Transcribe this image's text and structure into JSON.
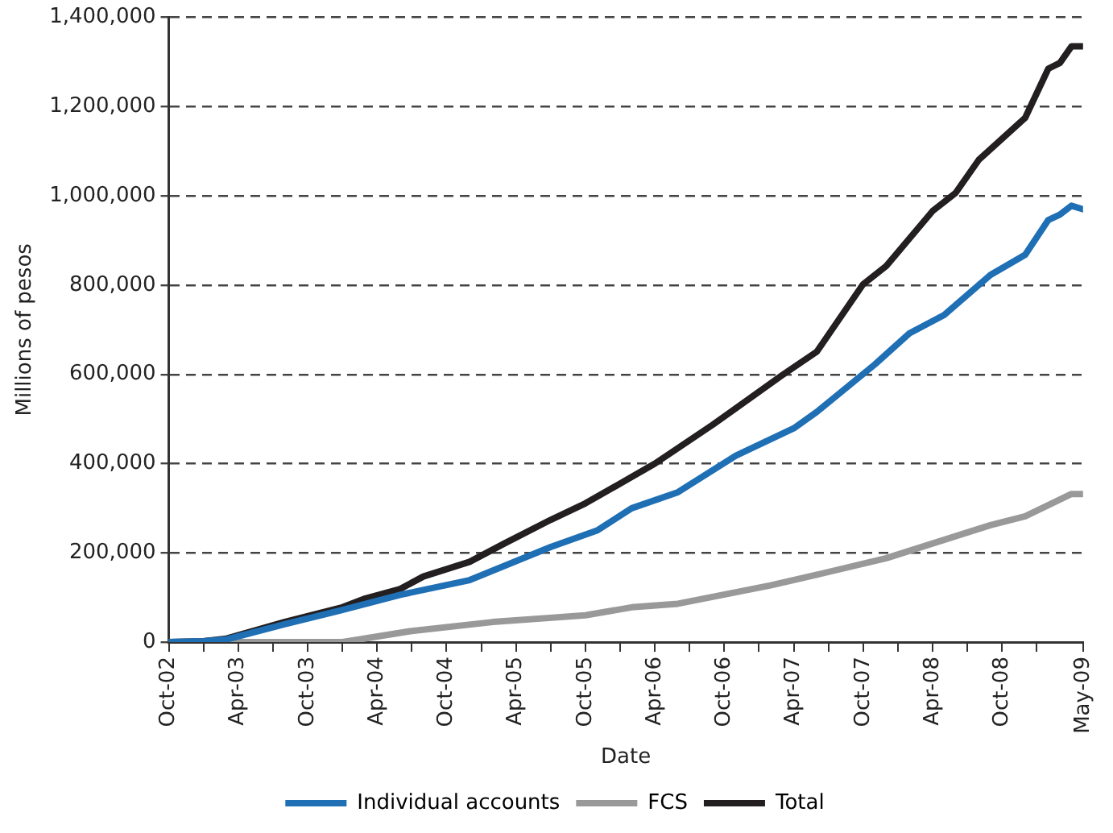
{
  "chart_data": {
    "type": "line",
    "xlabel": "Date",
    "ylabel": "Millions of pesos",
    "xlim": [
      "2002-10",
      "2009-05"
    ],
    "xticks": [
      {
        "value": "2002-10",
        "label": "Oct-02"
      },
      {
        "value": "2003-01",
        "label": null
      },
      {
        "value": "2003-04",
        "label": "Apr-03"
      },
      {
        "value": "2003-07",
        "label": null
      },
      {
        "value": "2003-10",
        "label": "Oct-03"
      },
      {
        "value": "2004-01",
        "label": null
      },
      {
        "value": "2004-04",
        "label": "Apr-04"
      },
      {
        "value": "2004-07",
        "label": null
      },
      {
        "value": "2004-10",
        "label": "Oct-04"
      },
      {
        "value": "2005-01",
        "label": null
      },
      {
        "value": "2005-04",
        "label": "Apr-05"
      },
      {
        "value": "2005-07",
        "label": null
      },
      {
        "value": "2005-10",
        "label": "Oct-05"
      },
      {
        "value": "2006-01",
        "label": null
      },
      {
        "value": "2006-04",
        "label": "Apr-06"
      },
      {
        "value": "2006-07",
        "label": null
      },
      {
        "value": "2006-10",
        "label": "Oct-06"
      },
      {
        "value": "2007-01",
        "label": null
      },
      {
        "value": "2007-04",
        "label": "Apr-07"
      },
      {
        "value": "2007-07",
        "label": null
      },
      {
        "value": "2007-10",
        "label": "Oct-07"
      },
      {
        "value": "2008-01",
        "label": null
      },
      {
        "value": "2008-04",
        "label": "Apr-08"
      },
      {
        "value": "2008-07",
        "label": null
      },
      {
        "value": "2008-10",
        "label": "Oct-08"
      },
      {
        "value": "2009-01",
        "label": null
      },
      {
        "value": "2009-05",
        "label": "May-09"
      }
    ],
    "ylim": [
      0,
      1400000
    ],
    "yticks": [
      {
        "value": 0,
        "label": "0"
      },
      {
        "value": 200000,
        "label": "200,000"
      },
      {
        "value": 400000,
        "label": "400,000"
      },
      {
        "value": 600000,
        "label": "600,000"
      },
      {
        "value": 800000,
        "label": "800,000"
      },
      {
        "value": 1000000,
        "label": "1,000,000"
      },
      {
        "value": 1200000,
        "label": "1,200,000"
      },
      {
        "value": 1400000,
        "label": "1,400,000"
      }
    ],
    "grid": "y",
    "legend": "bottom",
    "marker": "none",
    "line_style": "solid",
    "series": [
      {
        "name": "Individual accounts",
        "color": "#1f6fb5",
        "x": [
          "2002-10",
          "2003-01",
          "2003-03",
          "2003-08",
          "2004-01",
          "2004-06",
          "2004-12",
          "2005-07",
          "2005-11",
          "2006-02",
          "2006-06",
          "2006-11",
          "2007-04",
          "2007-06",
          "2007-11",
          "2008-02",
          "2008-05",
          "2008-09",
          "2008-12",
          "2009-02",
          "2009-03",
          "2009-04",
          "2009-05"
        ],
        "values": [
          0,
          2000,
          6000,
          40000,
          72000,
          106000,
          139000,
          213000,
          250000,
          300000,
          336000,
          418000,
          479000,
          516000,
          622000,
          692000,
          733000,
          823000,
          868000,
          946000,
          958000,
          978000,
          970000
        ]
      },
      {
        "name": "FCS",
        "color": "#999999",
        "x": [
          "2002-10",
          "2004-01",
          "2004-02",
          "2004-07",
          "2005-02",
          "2005-10",
          "2006-02",
          "2006-06",
          "2007-02",
          "2007-06",
          "2007-12",
          "2008-04",
          "2008-09",
          "2008-12",
          "2009-04",
          "2009-05"
        ],
        "values": [
          0,
          0,
          4000,
          25000,
          45000,
          60000,
          78000,
          86000,
          127000,
          151000,
          188000,
          221000,
          262000,
          282000,
          332000,
          332000
        ]
      },
      {
        "name": "Total",
        "color": "#231f20",
        "x": [
          "2002-10",
          "2003-01",
          "2003-03",
          "2003-08",
          "2004-01",
          "2004-03",
          "2004-06",
          "2004-08",
          "2004-12",
          "2005-03",
          "2005-07",
          "2005-10",
          "2006-02",
          "2006-04",
          "2006-09",
          "2007-03",
          "2007-06",
          "2007-10",
          "2007-12",
          "2008-04",
          "2008-06",
          "2008-08",
          "2008-12",
          "2009-02",
          "2009-03",
          "2009-04",
          "2009-05"
        ],
        "values": [
          0,
          2000,
          8000,
          45000,
          78000,
          98000,
          119000,
          147000,
          180000,
          221000,
          274000,
          311000,
          370000,
          400000,
          487000,
          598000,
          651000,
          802000,
          843000,
          966000,
          1007000,
          1081000,
          1175000,
          1285000,
          1298000,
          1335000,
          1335000
        ]
      }
    ]
  }
}
